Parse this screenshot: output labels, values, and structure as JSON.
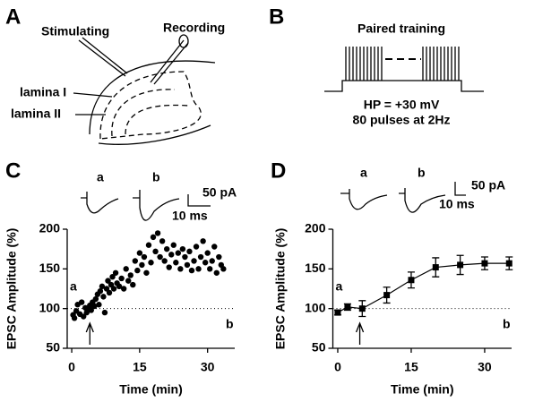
{
  "panels": {
    "A": {
      "letter": "A",
      "stimulating": "Stimulating",
      "recording": "Recording",
      "lamina_1": "lamina I",
      "lamina_2": "lamina II"
    },
    "B": {
      "letter": "B",
      "title": "Paired training",
      "hp": "HP = +30 mV",
      "pulses": "80 pulses at 2Hz"
    }
  },
  "chart_data": [
    {
      "type": "scatter",
      "letter": "C",
      "xlabel": "Time (min)",
      "ylabel": "EPSC Amplitude (%)",
      "xlim": [
        -1,
        36
      ],
      "ylim": [
        50,
        200
      ],
      "xticks": [
        0,
        15,
        30
      ],
      "yticks": [
        50,
        100,
        150,
        200
      ],
      "reference": 100,
      "arrow_x": 4,
      "trace_labels": [
        "a",
        "b"
      ],
      "scale_bar": [
        "50 pA",
        "10 ms"
      ],
      "color": "#000000",
      "x": [
        0.3,
        0.6,
        1,
        1.3,
        1.8,
        2.2,
        2.6,
        3,
        3.3,
        3.7,
        4,
        4.3,
        4.6,
        5,
        5.3,
        5.7,
        6,
        6.3,
        6.7,
        7,
        7.3,
        7.7,
        8,
        8.3,
        8.7,
        9,
        9.3,
        9.7,
        10,
        10.5,
        11,
        11.5,
        12,
        12.5,
        13,
        13.5,
        14,
        14.5,
        15,
        15.5,
        16,
        16.5,
        17,
        17.5,
        18,
        18.5,
        19,
        19.5,
        20,
        20.5,
        21,
        21.5,
        22,
        22.5,
        23,
        23.5,
        24,
        24.5,
        25,
        25.5,
        26,
        26.5,
        27,
        27.5,
        28,
        28.5,
        29,
        29.5,
        30,
        30.5,
        31,
        31.5,
        32,
        32.5,
        33,
        33.5
      ],
      "values": [
        92,
        88,
        97,
        105,
        93,
        108,
        90,
        101,
        95,
        100,
        104,
        98,
        108,
        103,
        112,
        118,
        105,
        122,
        128,
        115,
        95,
        125,
        135,
        120,
        130,
        140,
        125,
        145,
        132,
        128,
        138,
        125,
        150,
        135,
        142,
        130,
        160,
        148,
        170,
        155,
        165,
        145,
        180,
        158,
        190,
        172,
        195,
        165,
        185,
        160,
        175,
        152,
        168,
        180,
        158,
        170,
        150,
        175,
        165,
        155,
        172,
        148,
        160,
        178,
        150,
        165,
        185,
        158,
        170,
        150,
        160,
        178,
        145,
        165,
        155,
        150
      ]
    },
    {
      "type": "line",
      "letter": "D",
      "xlabel": "Time (min)",
      "ylabel": "EPSC Amplitude (%)",
      "xlim": [
        -1,
        35.5
      ],
      "ylim": [
        50,
        200
      ],
      "xticks": [
        0,
        15,
        30
      ],
      "yticks": [
        50,
        100,
        150,
        200
      ],
      "reference": 100,
      "arrow_x": 4.5,
      "trace_labels": [
        "a",
        "b"
      ],
      "scale_bar": [
        "50 pA",
        "10 ms"
      ],
      "color": "#000000",
      "x": [
        0,
        2,
        5,
        10,
        15,
        20,
        25,
        30,
        35
      ],
      "values": [
        95,
        102,
        100,
        117,
        136,
        152,
        155,
        157,
        157
      ],
      "errors": [
        3,
        4,
        10,
        10,
        10,
        12,
        12,
        8,
        8
      ]
    }
  ]
}
